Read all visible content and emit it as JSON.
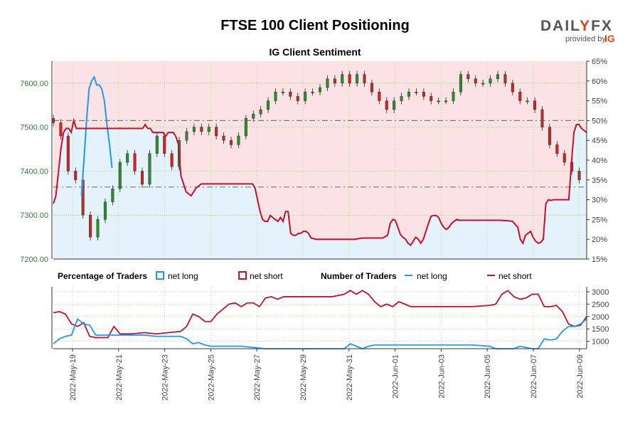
{
  "header": {
    "title": "FTSE 100 Client Positioning",
    "subtitle": "IG Client Sentiment"
  },
  "logo": {
    "brand_left": "DAIL",
    "brand_mark": "Y",
    "brand_right": "FX",
    "provided_by": "provided by",
    "ig": "IG"
  },
  "legend": {
    "pct_title": "Percentage of Traders",
    "num_title": "Number of Traders",
    "net_long": "net long",
    "net_short": "net short"
  },
  "colors": {
    "long": "#2196f3",
    "short": "#c8102e",
    "long_fill": "#e3f2fb",
    "short_fill": "#fbe3e5",
    "candle_up": "#2e8b2e",
    "candle_down": "#c62828",
    "grid": "#7cb342",
    "dashed": "#777777"
  },
  "chart_data": [
    {
      "type": "candlestick",
      "title": "IG Client Sentiment",
      "ylim_price": [
        7200,
        7650
      ],
      "y_ticks_price": [
        "7200.00",
        "7300.00",
        "7400.00",
        "7500.00",
        "7600.00"
      ],
      "ylim_pct": [
        15,
        65
      ],
      "y_ticks_pct": [
        "15%",
        "20%",
        "25%",
        "30%",
        "35%",
        "40%",
        "45%",
        "50%",
        "55%",
        "60%",
        "65%"
      ],
      "reference_levels_pct": [
        50.0,
        33.2
      ],
      "series_short_pct": [
        [
          0,
          29
        ],
        [
          2,
          31
        ],
        [
          4,
          37
        ],
        [
          6,
          43
        ],
        [
          8,
          47
        ],
        [
          10,
          48
        ],
        [
          12,
          48
        ],
        [
          14,
          47
        ],
        [
          16,
          50
        ],
        [
          18,
          48
        ],
        [
          20,
          48
        ],
        [
          22,
          48
        ],
        [
          24,
          48
        ],
        [
          26,
          48
        ],
        [
          28,
          48
        ],
        [
          30,
          48
        ],
        [
          32,
          48
        ],
        [
          34,
          48
        ],
        [
          36,
          48
        ],
        [
          38,
          48
        ],
        [
          40,
          48
        ],
        [
          42,
          48
        ],
        [
          44,
          48
        ],
        [
          46,
          48
        ],
        [
          48,
          48
        ],
        [
          50,
          48
        ],
        [
          52,
          48
        ],
        [
          54,
          48
        ],
        [
          56,
          48
        ],
        [
          58,
          48
        ],
        [
          60,
          48
        ],
        [
          62,
          48
        ],
        [
          64,
          48
        ],
        [
          66,
          48
        ],
        [
          68,
          48
        ],
        [
          70,
          48
        ],
        [
          72,
          49
        ],
        [
          74,
          48
        ],
        [
          76,
          48
        ],
        [
          78,
          47
        ],
        [
          80,
          47
        ],
        [
          82,
          47
        ],
        [
          84,
          47
        ],
        [
          86,
          47
        ],
        [
          88,
          46
        ],
        [
          90,
          47
        ],
        [
          92,
          47
        ],
        [
          94,
          47
        ],
        [
          96,
          46
        ],
        [
          98,
          44
        ],
        [
          100,
          36
        ],
        [
          104,
          32
        ],
        [
          108,
          31
        ],
        [
          112,
          33
        ],
        [
          116,
          34
        ],
        [
          120,
          34
        ],
        [
          124,
          34
        ],
        [
          128,
          34
        ],
        [
          132,
          34
        ],
        [
          136,
          34
        ],
        [
          140,
          34
        ],
        [
          144,
          34
        ],
        [
          148,
          34
        ],
        [
          150,
          34
        ],
        [
          152,
          34
        ],
        [
          154,
          34
        ],
        [
          156,
          34
        ],
        [
          158,
          33
        ],
        [
          160,
          30
        ],
        [
          162,
          27
        ],
        [
          164,
          25
        ],
        [
          166,
          24.5
        ],
        [
          168,
          24.5
        ],
        [
          170,
          26
        ],
        [
          172,
          25.5
        ],
        [
          174,
          25
        ],
        [
          176,
          24.5
        ],
        [
          178,
          25.5
        ],
        [
          180,
          24.5
        ],
        [
          182,
          27
        ],
        [
          184,
          27
        ],
        [
          186,
          21.5
        ],
        [
          188,
          21
        ],
        [
          190,
          21
        ],
        [
          192,
          21.5
        ],
        [
          194,
          21.5
        ],
        [
          196,
          22
        ],
        [
          198,
          22
        ],
        [
          200,
          21.5
        ],
        [
          202,
          20.3
        ],
        [
          206,
          20
        ],
        [
          212,
          20
        ],
        [
          218,
          20
        ],
        [
          224,
          20
        ],
        [
          230,
          20
        ],
        [
          236,
          20
        ],
        [
          242,
          20.3
        ],
        [
          248,
          20.3
        ],
        [
          254,
          20.3
        ],
        [
          258,
          20.3
        ],
        [
          262,
          21
        ],
        [
          264,
          24
        ],
        [
          266,
          25
        ],
        [
          268,
          24.8
        ],
        [
          270,
          23
        ],
        [
          272,
          21.2
        ],
        [
          274,
          20.5
        ],
        [
          276,
          20
        ],
        [
          278,
          19
        ],
        [
          280,
          18.5
        ],
        [
          282,
          19.5
        ],
        [
          284,
          20.5
        ],
        [
          286,
          20
        ],
        [
          288,
          19
        ],
        [
          290,
          20
        ],
        [
          292,
          22
        ],
        [
          294,
          24
        ],
        [
          296,
          25.8
        ],
        [
          298,
          26
        ],
        [
          300,
          26
        ],
        [
          302,
          25.5
        ],
        [
          304,
          24
        ],
        [
          306,
          23
        ],
        [
          308,
          22.5
        ],
        [
          310,
          23
        ],
        [
          312,
          24
        ],
        [
          314,
          24.5
        ],
        [
          316,
          25
        ],
        [
          318,
          24.8
        ],
        [
          320,
          24.8
        ],
        [
          326,
          24.8
        ],
        [
          332,
          24.8
        ],
        [
          338,
          24.8
        ],
        [
          344,
          24.8
        ],
        [
          350,
          24.8
        ],
        [
          356,
          24.7
        ],
        [
          360,
          24.5
        ],
        [
          364,
          23
        ],
        [
          366,
          20
        ],
        [
          368,
          19
        ],
        [
          370,
          21
        ],
        [
          372,
          21.5
        ],
        [
          374,
          22
        ],
        [
          376,
          20.5
        ],
        [
          378,
          19.5
        ],
        [
          380,
          19
        ],
        [
          382,
          19.2
        ],
        [
          384,
          20
        ],
        [
          386,
          29
        ],
        [
          388,
          30
        ],
        [
          390,
          29.8
        ],
        [
          392,
          30
        ],
        [
          394,
          30
        ],
        [
          396,
          30
        ],
        [
          398,
          30
        ],
        [
          400,
          30
        ],
        [
          402,
          30
        ],
        [
          404,
          30
        ],
        [
          406,
          39
        ],
        [
          408,
          47
        ],
        [
          410,
          49
        ],
        [
          412,
          49
        ],
        [
          414,
          48
        ],
        [
          416,
          47.5
        ],
        [
          418,
          47
        ]
      ],
      "price_axis_note": "candles start at x index 0 (7520) and end at x index 418 (7300)"
    },
    {
      "type": "line",
      "title": "Number of Traders",
      "ylim": [
        700,
        3200
      ],
      "y_ticks": [
        "1000",
        "1500",
        "2000",
        "2500",
        "3000"
      ],
      "x_ticks": [
        "2022-May-19",
        "2022-May-21",
        "2022-May-23",
        "2022-May-25",
        "2022-May-27",
        "2022-May-29",
        "2022-May-31",
        "2022-Jun-01",
        "2022-Jun-03",
        "2022-Jun-05",
        "2022-Jun-07",
        "2022-Jun-09"
      ]
    }
  ]
}
